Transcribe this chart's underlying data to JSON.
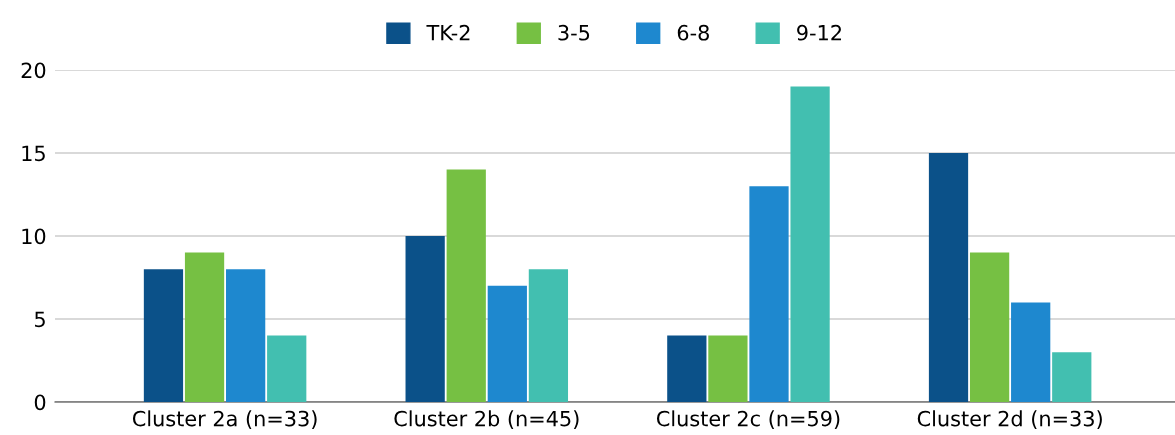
{
  "chart_data": {
    "type": "bar",
    "categories": [
      "Cluster 2a (n=33)",
      "Cluster 2b (n=45)",
      "Cluster 2c (n=59)",
      "Cluster 2d (n=33)"
    ],
    "series": [
      {
        "name": "TK-2",
        "color": "#0b5189",
        "values": [
          8,
          10,
          4,
          15
        ]
      },
      {
        "name": "3-5",
        "color": "#76c043",
        "values": [
          9,
          14,
          4,
          9
        ]
      },
      {
        "name": "6-8",
        "color": "#1e88cf",
        "values": [
          8,
          7,
          13,
          6
        ]
      },
      {
        "name": "9-12",
        "color": "#42bfb0",
        "values": [
          4,
          8,
          19,
          3
        ]
      }
    ],
    "ylim": [
      0,
      20
    ],
    "yticks": [
      0,
      5,
      10,
      15,
      20
    ],
    "grid": "y",
    "legend": "top"
  }
}
